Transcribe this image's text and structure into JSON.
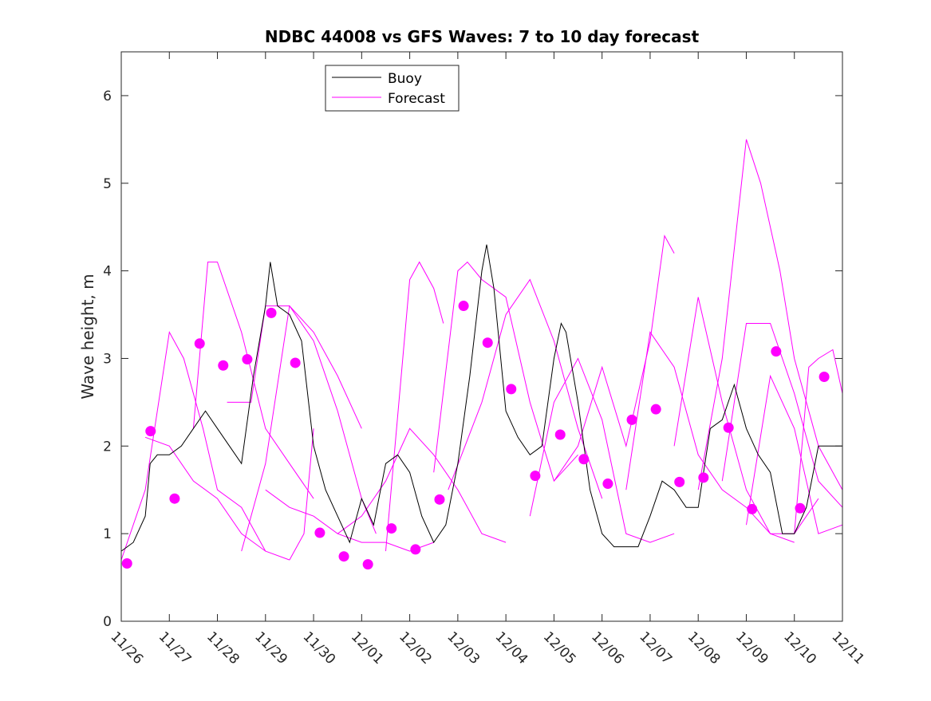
{
  "chart_data": {
    "type": "line",
    "title": "NDBC 44008 vs GFS Waves: 7 to 10 day forecast",
    "xlabel": "",
    "ylabel": "Wave height, m",
    "xlim": [
      0,
      15
    ],
    "ylim": [
      0,
      6.5
    ],
    "x_unit": "days since 11/26",
    "x_tick_labels": [
      "11/26",
      "11/27",
      "11/28",
      "11/29",
      "11/30",
      "12/01",
      "12/02",
      "12/03",
      "12/04",
      "12/05",
      "12/06",
      "12/07",
      "12/08",
      "12/09",
      "12/10",
      "12/11"
    ],
    "y_ticks": [
      0,
      1,
      2,
      3,
      4,
      5,
      6
    ],
    "grid": false,
    "legend": {
      "placement": "top-left",
      "entries": [
        {
          "label": "Buoy",
          "color": "#000000"
        },
        {
          "label": "Forecast",
          "color": "#ff00ff"
        }
      ]
    },
    "colors": {
      "buoy": "#000000",
      "forecast": "#ff00ff"
    },
    "buoy": [
      [
        0,
        0.8
      ],
      [
        0.25,
        0.9
      ],
      [
        0.5,
        1.2
      ],
      [
        0.6,
        1.8
      ],
      [
        0.75,
        1.9
      ],
      [
        1,
        1.9
      ],
      [
        1.25,
        2.0
      ],
      [
        1.5,
        2.2
      ],
      [
        1.75,
        2.4
      ],
      [
        2,
        2.2
      ],
      [
        2.25,
        2.0
      ],
      [
        2.5,
        1.8
      ],
      [
        2.75,
        2.8
      ],
      [
        3,
        3.6
      ],
      [
        3.1,
        4.1
      ],
      [
        3.25,
        3.6
      ],
      [
        3.5,
        3.5
      ],
      [
        3.75,
        3.2
      ],
      [
        4,
        2.0
      ],
      [
        4.25,
        1.5
      ],
      [
        4.5,
        1.2
      ],
      [
        4.75,
        0.9
      ],
      [
        5,
        1.4
      ],
      [
        5.25,
        1.1
      ],
      [
        5.5,
        1.8
      ],
      [
        5.75,
        1.9
      ],
      [
        6,
        1.7
      ],
      [
        6.25,
        1.2
      ],
      [
        6.5,
        0.9
      ],
      [
        6.75,
        1.1
      ],
      [
        7,
        1.8
      ],
      [
        7.25,
        2.8
      ],
      [
        7.5,
        4.0
      ],
      [
        7.6,
        4.3
      ],
      [
        7.75,
        3.8
      ],
      [
        8,
        2.4
      ],
      [
        8.25,
        2.1
      ],
      [
        8.5,
        1.9
      ],
      [
        8.75,
        2.0
      ],
      [
        9,
        3.0
      ],
      [
        9.15,
        3.4
      ],
      [
        9.25,
        3.3
      ],
      [
        9.5,
        2.5
      ],
      [
        9.75,
        1.5
      ],
      [
        10,
        1.0
      ],
      [
        10.25,
        0.85
      ],
      [
        10.5,
        0.85
      ],
      [
        10.75,
        0.85
      ],
      [
        11,
        1.2
      ],
      [
        11.25,
        1.6
      ],
      [
        11.5,
        1.5
      ],
      [
        11.75,
        1.3
      ],
      [
        12,
        1.3
      ],
      [
        12.25,
        2.2
      ],
      [
        12.5,
        2.3
      ],
      [
        12.75,
        2.7
      ],
      [
        13,
        2.2
      ],
      [
        13.25,
        1.9
      ],
      [
        13.5,
        1.7
      ],
      [
        13.75,
        1.0
      ],
      [
        14,
        1.0
      ],
      [
        14.25,
        1.3
      ],
      [
        14.5,
        2.0
      ],
      [
        14.75,
        2.0
      ],
      [
        15,
        2.0
      ]
    ],
    "forecast_segments": [
      [
        [
          0,
          0.7
        ],
        [
          0.5,
          1.5
        ],
        [
          1,
          3.3
        ],
        [
          1.3,
          3.0
        ],
        [
          1.7,
          2.2
        ],
        [
          2,
          1.5
        ],
        [
          2.5,
          1.3
        ],
        [
          3,
          0.8
        ]
      ],
      [
        [
          0.5,
          2.1
        ],
        [
          1,
          2.0
        ],
        [
          1.5,
          1.6
        ],
        [
          2,
          1.4
        ],
        [
          2.5,
          1.0
        ],
        [
          3,
          0.8
        ],
        [
          3.5,
          0.7
        ]
      ],
      [
        [
          1.5,
          2.2
        ],
        [
          1.8,
          4.1
        ],
        [
          2,
          4.1
        ],
        [
          2.5,
          3.3
        ],
        [
          3,
          2.2
        ],
        [
          3.5,
          1.8
        ],
        [
          4,
          1.4
        ]
      ],
      [
        [
          2.5,
          0.8
        ],
        [
          3,
          1.8
        ],
        [
          3.5,
          3.6
        ],
        [
          4,
          3.3
        ],
        [
          4.5,
          2.8
        ],
        [
          5,
          2.2
        ]
      ],
      [
        [
          2.2,
          2.5
        ],
        [
          2.7,
          2.5
        ],
        [
          3,
          3.6
        ],
        [
          3.5,
          3.6
        ],
        [
          4,
          3.2
        ],
        [
          4.5,
          2.4
        ],
        [
          5,
          1.4
        ],
        [
          5.3,
          1.0
        ]
      ],
      [
        [
          3,
          1.5
        ],
        [
          3.5,
          1.3
        ],
        [
          4,
          1.2
        ],
        [
          4.5,
          1.0
        ],
        [
          5,
          0.9
        ],
        [
          5.5,
          0.9
        ],
        [
          6,
          0.8
        ],
        [
          6.5,
          0.9
        ]
      ],
      [
        [
          3.5,
          0.7
        ],
        [
          3.8,
          1.0
        ],
        [
          4,
          2.2
        ]
      ],
      [
        [
          4.5,
          1.0
        ],
        [
          5,
          1.2
        ],
        [
          5.5,
          1.6
        ],
        [
          6,
          2.2
        ],
        [
          6.5,
          1.9
        ],
        [
          7,
          1.5
        ],
        [
          7.5,
          1.0
        ],
        [
          8,
          0.9
        ]
      ],
      [
        [
          5.5,
          0.8
        ],
        [
          6,
          3.9
        ],
        [
          6.2,
          4.1
        ],
        [
          6.5,
          3.8
        ],
        [
          6.7,
          3.4
        ]
      ],
      [
        [
          6.5,
          1.7
        ],
        [
          7,
          4.0
        ],
        [
          7.2,
          4.1
        ],
        [
          7.5,
          3.9
        ],
        [
          8,
          3.7
        ],
        [
          8.5,
          2.5
        ],
        [
          9,
          1.6
        ],
        [
          9.5,
          1.9
        ]
      ],
      [
        [
          6.8,
          1.5
        ],
        [
          7.5,
          2.5
        ],
        [
          8,
          3.5
        ],
        [
          8.5,
          3.9
        ],
        [
          9,
          3.2
        ],
        [
          9.5,
          2.2
        ],
        [
          10,
          1.4
        ]
      ],
      [
        [
          8.5,
          1.2
        ],
        [
          9,
          2.5
        ],
        [
          9.5,
          3.0
        ],
        [
          10,
          2.3
        ],
        [
          10.5,
          1.0
        ],
        [
          11,
          0.9
        ],
        [
          11.5,
          1.0
        ]
      ],
      [
        [
          9,
          1.6
        ],
        [
          9.5,
          2.0
        ],
        [
          10,
          2.9
        ],
        [
          10.5,
          2.0
        ],
        [
          11,
          3.2
        ],
        [
          11.3,
          4.4
        ],
        [
          11.5,
          4.2
        ]
      ],
      [
        [
          10.5,
          1.5
        ],
        [
          11,
          3.3
        ],
        [
          11.5,
          2.9
        ],
        [
          12,
          1.9
        ],
        [
          12.5,
          1.5
        ],
        [
          13,
          1.3
        ],
        [
          13.5,
          1.0
        ],
        [
          14,
          0.9
        ]
      ],
      [
        [
          11.5,
          2.0
        ],
        [
          12,
          3.7
        ],
        [
          12.5,
          2.5
        ],
        [
          13,
          1.5
        ],
        [
          13.5,
          1.0
        ],
        [
          14,
          1.0
        ],
        [
          14.5,
          1.4
        ]
      ],
      [
        [
          12,
          1.5
        ],
        [
          12.5,
          3.0
        ],
        [
          13,
          5.5
        ],
        [
          13.3,
          5.0
        ],
        [
          13.7,
          4.0
        ],
        [
          14,
          3.0
        ],
        [
          14.5,
          2.0
        ],
        [
          15,
          1.5
        ]
      ],
      [
        [
          12.5,
          1.6
        ],
        [
          13,
          3.4
        ],
        [
          13.5,
          3.4
        ],
        [
          14,
          2.6
        ],
        [
          14.5,
          1.6
        ],
        [
          15,
          1.3
        ]
      ],
      [
        [
          13,
          1.1
        ],
        [
          13.5,
          2.8
        ],
        [
          14,
          2.2
        ],
        [
          14.5,
          1.0
        ],
        [
          15,
          1.1
        ]
      ],
      [
        [
          14,
          1.0
        ],
        [
          14.3,
          2.9
        ],
        [
          14.5,
          3.0
        ],
        [
          14.8,
          3.1
        ],
        [
          15,
          2.6
        ]
      ]
    ],
    "forecast_points": [
      [
        0.12,
        0.66
      ],
      [
        0.61,
        2.17
      ],
      [
        1.11,
        1.4
      ],
      [
        1.63,
        3.17
      ],
      [
        2.12,
        2.92
      ],
      [
        2.62,
        2.99
      ],
      [
        3.12,
        3.52
      ],
      [
        3.62,
        2.95
      ],
      [
        4.13,
        1.01
      ],
      [
        4.63,
        0.74
      ],
      [
        5.13,
        0.65
      ],
      [
        5.62,
        1.06
      ],
      [
        6.12,
        0.82
      ],
      [
        6.62,
        1.39
      ],
      [
        7.12,
        3.6
      ],
      [
        7.62,
        3.18
      ],
      [
        8.11,
        2.65
      ],
      [
        8.61,
        1.66
      ],
      [
        9.13,
        2.13
      ],
      [
        9.62,
        1.85
      ],
      [
        10.12,
        1.57
      ],
      [
        10.62,
        2.3
      ],
      [
        11.12,
        2.42
      ],
      [
        11.61,
        1.59
      ],
      [
        12.11,
        1.64
      ],
      [
        12.63,
        2.21
      ],
      [
        13.12,
        1.28
      ],
      [
        13.62,
        3.08
      ],
      [
        14.12,
        1.29
      ],
      [
        14.62,
        2.79
      ]
    ]
  }
}
